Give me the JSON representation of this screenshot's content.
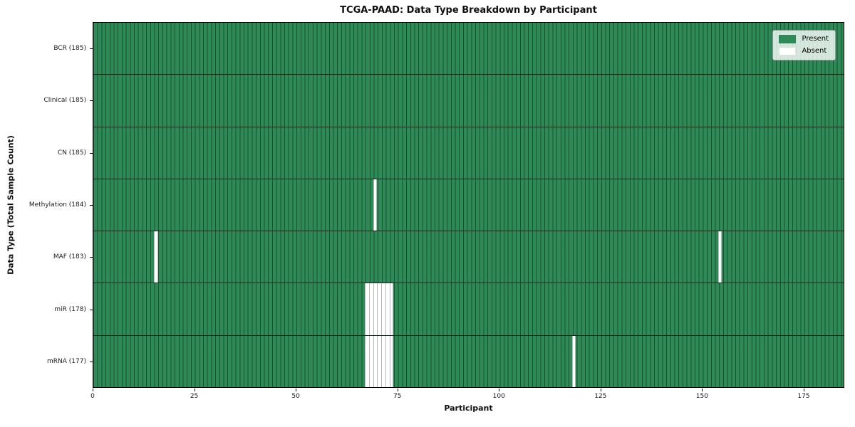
{
  "chart_data": {
    "type": "heatmap",
    "title": "TCGA-PAAD: Data Type Breakdown by Participant",
    "xlabel": "Participant",
    "ylabel": "Data Type (Total Sample Count)",
    "n_participants": 185,
    "x_range": [
      0,
      185
    ],
    "x_ticks": [
      0,
      25,
      50,
      75,
      100,
      125,
      150,
      175
    ],
    "grid": "per-cell edges, black row separators",
    "legend_position": "upper right",
    "legend": [
      {
        "label": "Present",
        "color": "#2e8b57"
      },
      {
        "label": "Absent",
        "color": "#ffffff"
      }
    ],
    "rows": [
      {
        "name": "bcr",
        "label": "BCR (185)",
        "total_samples": 185,
        "absent_participants": []
      },
      {
        "name": "clinical",
        "label": "Clinical (185)",
        "total_samples": 185,
        "absent_participants": []
      },
      {
        "name": "cn",
        "label": "CN (185)",
        "total_samples": 185,
        "absent_participants": []
      },
      {
        "name": "methylation",
        "label": "Methylation (184)",
        "total_samples": 184,
        "absent_participants": [
          69
        ]
      },
      {
        "name": "maf",
        "label": "MAF (183)",
        "total_samples": 183,
        "absent_participants": [
          15,
          154
        ]
      },
      {
        "name": "mir",
        "label": "miR (178)",
        "total_samples": 178,
        "absent_participants": [
          67,
          68,
          69,
          70,
          71,
          72,
          73
        ]
      },
      {
        "name": "mrna",
        "label": "mRNA (177)",
        "total_samples": 177,
        "absent_participants": [
          67,
          68,
          69,
          70,
          71,
          72,
          73,
          118
        ]
      }
    ],
    "colors": {
      "present": "#2e8b57",
      "absent": "#ffffff",
      "cell_edge": "rgba(0,0,0,0.42)",
      "row_separator": "rgba(0,0,0,0.72)",
      "plot_border": "#000000",
      "absent_cell_edge": "#b8b8b8"
    }
  }
}
